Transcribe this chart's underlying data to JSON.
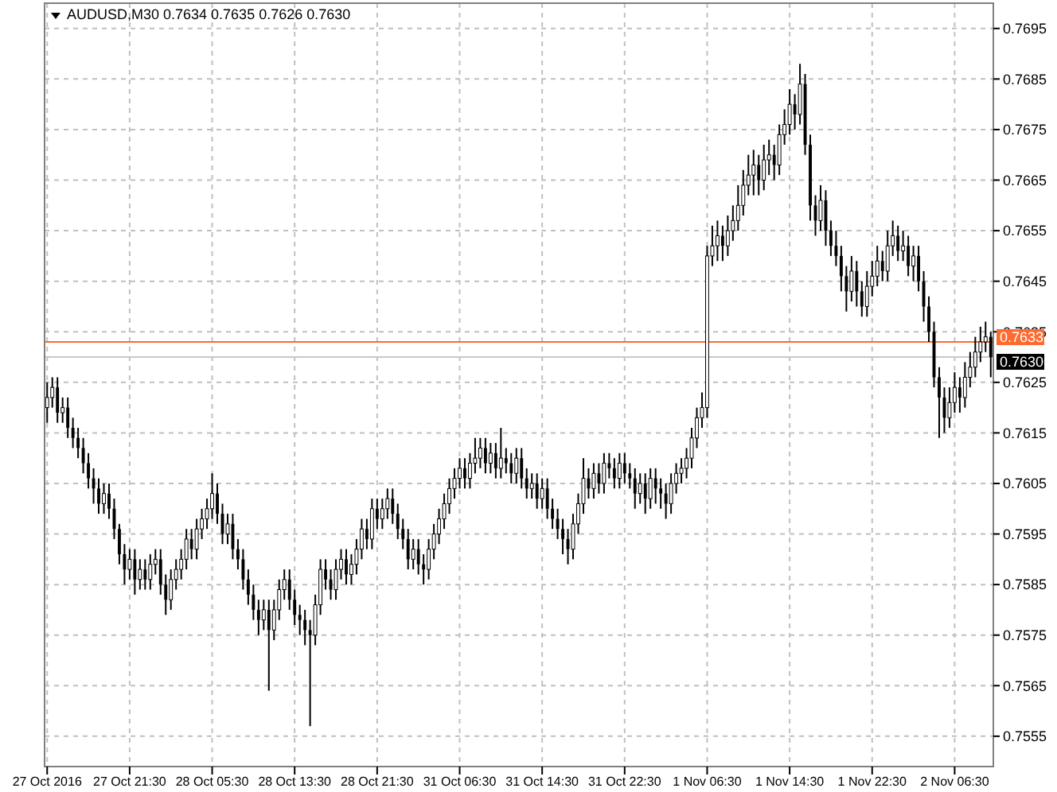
{
  "chart_data": {
    "type": "candlestick",
    "title": "AUDUSD,M30  0.7634 0.7635 0.7626 0.7630",
    "categories": [
      "27 Oct 2016",
      null,
      null,
      null,
      null,
      null,
      null,
      null,
      null,
      null,
      null,
      null,
      null,
      null,
      null,
      null,
      "27 Oct 21:30",
      null,
      null,
      null,
      null,
      null,
      null,
      null,
      null,
      null,
      null,
      null,
      null,
      null,
      null,
      null,
      "28 Oct 05:30",
      null,
      null,
      null,
      null,
      null,
      null,
      null,
      null,
      null,
      null,
      null,
      null,
      null,
      null,
      null,
      "28 Oct 13:30",
      null,
      null,
      null,
      null,
      null,
      null,
      null,
      null,
      null,
      null,
      null,
      null,
      null,
      null,
      null,
      "28 Oct 21:30",
      null,
      null,
      null,
      null,
      null,
      null,
      null,
      null,
      null,
      null,
      null,
      null,
      null,
      null,
      null,
      "31 Oct 06:30",
      null,
      null,
      null,
      null,
      null,
      null,
      null,
      null,
      null,
      null,
      null,
      null,
      null,
      null,
      null,
      "31 Oct 14:30",
      null,
      null,
      null,
      null,
      null,
      null,
      null,
      null,
      null,
      null,
      null,
      null,
      null,
      null,
      null,
      "31 Oct 22:30",
      null,
      null,
      null,
      null,
      null,
      null,
      null,
      null,
      null,
      null,
      null,
      null,
      null,
      null,
      null,
      "1 Nov 06:30",
      null,
      null,
      null,
      null,
      null,
      null,
      null,
      null,
      null,
      null,
      null,
      null,
      null,
      null,
      null,
      "1 Nov 14:30",
      null,
      null,
      null,
      null,
      null,
      null,
      null,
      null,
      null,
      null,
      null,
      null,
      null,
      null,
      null,
      "1 Nov 22:30",
      null,
      null,
      null,
      null,
      null,
      null,
      null,
      null,
      null,
      null,
      null,
      null,
      null,
      null,
      null,
      "2 Nov 06:30",
      null,
      null,
      null,
      null,
      null,
      null,
      null
    ],
    "ohlc": [
      [
        0.762,
        0.7625,
        0.7617,
        0.7622
      ],
      [
        0.7622,
        0.7626,
        0.762,
        0.7624
      ],
      [
        0.7624,
        0.7626,
        0.7617,
        0.7619
      ],
      [
        0.7619,
        0.7622,
        0.7617,
        0.762
      ],
      [
        0.762,
        0.7622,
        0.7614,
        0.7616
      ],
      [
        0.7616,
        0.7618,
        0.7612,
        0.7614
      ],
      [
        0.7614,
        0.7616,
        0.761,
        0.7612
      ],
      [
        0.7612,
        0.7614,
        0.7607,
        0.7609
      ],
      [
        0.7609,
        0.7611,
        0.7604,
        0.7606
      ],
      [
        0.7606,
        0.7608,
        0.7601,
        0.7604
      ],
      [
        0.7604,
        0.7606,
        0.7599,
        0.7601
      ],
      [
        0.7601,
        0.7605,
        0.7599,
        0.7603
      ],
      [
        0.7603,
        0.7605,
        0.7598,
        0.76
      ],
      [
        0.76,
        0.7602,
        0.7594,
        0.7596
      ],
      [
        0.7596,
        0.7597,
        0.7589,
        0.7591
      ],
      [
        0.7591,
        0.7593,
        0.7585,
        0.7588
      ],
      [
        0.7588,
        0.7592,
        0.7586,
        0.759
      ],
      [
        0.759,
        0.7592,
        0.7583,
        0.7586
      ],
      [
        0.7586,
        0.759,
        0.7584,
        0.7588
      ],
      [
        0.7588,
        0.759,
        0.7584,
        0.7586
      ],
      [
        0.7586,
        0.7591,
        0.7584,
        0.7589
      ],
      [
        0.7589,
        0.7592,
        0.7587,
        0.759
      ],
      [
        0.759,
        0.7592,
        0.7583,
        0.7585
      ],
      [
        0.7585,
        0.7587,
        0.7579,
        0.7582
      ],
      [
        0.7582,
        0.7588,
        0.758,
        0.7586
      ],
      [
        0.7586,
        0.759,
        0.7584,
        0.7588
      ],
      [
        0.7588,
        0.7592,
        0.7586,
        0.759
      ],
      [
        0.759,
        0.7596,
        0.7588,
        0.7594
      ],
      [
        0.7594,
        0.7596,
        0.759,
        0.7592
      ],
      [
        0.7592,
        0.7598,
        0.759,
        0.7596
      ],
      [
        0.7596,
        0.76,
        0.7594,
        0.7598
      ],
      [
        0.7598,
        0.7602,
        0.7596,
        0.76
      ],
      [
        0.76,
        0.7607,
        0.7598,
        0.7603
      ],
      [
        0.7603,
        0.7605,
        0.7597,
        0.7599
      ],
      [
        0.7599,
        0.7601,
        0.7593,
        0.7595
      ],
      [
        0.7595,
        0.7599,
        0.7593,
        0.7597
      ],
      [
        0.7597,
        0.7599,
        0.759,
        0.7592
      ],
      [
        0.7592,
        0.7594,
        0.7588,
        0.759
      ],
      [
        0.759,
        0.7592,
        0.7584,
        0.7586
      ],
      [
        0.7586,
        0.7588,
        0.7581,
        0.7583
      ],
      [
        0.7583,
        0.7585,
        0.7578,
        0.758
      ],
      [
        0.758,
        0.7582,
        0.7575,
        0.7578
      ],
      [
        0.7578,
        0.7582,
        0.7576,
        0.758
      ],
      [
        0.758,
        0.7582,
        0.7564,
        0.7576
      ],
      [
        0.7576,
        0.7582,
        0.7574,
        0.758
      ],
      [
        0.758,
        0.7586,
        0.7578,
        0.7584
      ],
      [
        0.7584,
        0.7588,
        0.7582,
        0.7586
      ],
      [
        0.7586,
        0.7588,
        0.758,
        0.7582
      ],
      [
        0.7582,
        0.7584,
        0.7577,
        0.7579
      ],
      [
        0.7579,
        0.7581,
        0.7575,
        0.7578
      ],
      [
        0.7578,
        0.758,
        0.7573,
        0.7576
      ],
      [
        0.7576,
        0.7578,
        0.7557,
        0.7575
      ],
      [
        0.7575,
        0.7583,
        0.7573,
        0.7581
      ],
      [
        0.7581,
        0.759,
        0.7579,
        0.7588
      ],
      [
        0.7588,
        0.759,
        0.7584,
        0.7586
      ],
      [
        0.7586,
        0.7588,
        0.7582,
        0.7584
      ],
      [
        0.7584,
        0.759,
        0.7582,
        0.7588
      ],
      [
        0.7588,
        0.7592,
        0.7586,
        0.759
      ],
      [
        0.759,
        0.7592,
        0.7585,
        0.7587
      ],
      [
        0.7587,
        0.7591,
        0.7585,
        0.7589
      ],
      [
        0.7589,
        0.7594,
        0.7587,
        0.7592
      ],
      [
        0.7592,
        0.7598,
        0.759,
        0.7596
      ],
      [
        0.7596,
        0.7598,
        0.7592,
        0.7594
      ],
      [
        0.7594,
        0.7602,
        0.7592,
        0.76
      ],
      [
        0.76,
        0.7602,
        0.7596,
        0.7598
      ],
      [
        0.7598,
        0.7602,
        0.7596,
        0.76
      ],
      [
        0.76,
        0.7604,
        0.7598,
        0.7602
      ],
      [
        0.7602,
        0.7604,
        0.7597,
        0.7599
      ],
      [
        0.7599,
        0.7601,
        0.7594,
        0.7596
      ],
      [
        0.7596,
        0.7598,
        0.7592,
        0.7594
      ],
      [
        0.7594,
        0.7596,
        0.7588,
        0.759
      ],
      [
        0.759,
        0.7594,
        0.7588,
        0.7592
      ],
      [
        0.7592,
        0.7594,
        0.7587,
        0.7589
      ],
      [
        0.7589,
        0.7591,
        0.7585,
        0.7588
      ],
      [
        0.7588,
        0.7594,
        0.7586,
        0.7592
      ],
      [
        0.7592,
        0.7597,
        0.759,
        0.7595
      ],
      [
        0.7595,
        0.76,
        0.7593,
        0.7598
      ],
      [
        0.7598,
        0.7603,
        0.7596,
        0.7601
      ],
      [
        0.7601,
        0.7606,
        0.7599,
        0.7604
      ],
      [
        0.7604,
        0.7608,
        0.7602,
        0.7606
      ],
      [
        0.7606,
        0.761,
        0.7604,
        0.7608
      ],
      [
        0.7608,
        0.761,
        0.7604,
        0.7606
      ],
      [
        0.7606,
        0.7611,
        0.7604,
        0.7609
      ],
      [
        0.7609,
        0.7614,
        0.7607,
        0.761
      ],
      [
        0.761,
        0.7614,
        0.7608,
        0.7612
      ],
      [
        0.7612,
        0.7614,
        0.7607,
        0.7609
      ],
      [
        0.7609,
        0.7613,
        0.7607,
        0.7611
      ],
      [
        0.7611,
        0.7613,
        0.7606,
        0.7608
      ],
      [
        0.7608,
        0.7616,
        0.7606,
        0.761
      ],
      [
        0.761,
        0.7612,
        0.7607,
        0.7609
      ],
      [
        0.7609,
        0.7611,
        0.7605,
        0.7607
      ],
      [
        0.7607,
        0.7612,
        0.7605,
        0.761
      ],
      [
        0.761,
        0.7612,
        0.7604,
        0.7606
      ],
      [
        0.7606,
        0.7608,
        0.7602,
        0.7604
      ],
      [
        0.7604,
        0.7607,
        0.7602,
        0.7605
      ],
      [
        0.7605,
        0.7607,
        0.76,
        0.7602
      ],
      [
        0.7602,
        0.7606,
        0.76,
        0.7604
      ],
      [
        0.7604,
        0.7606,
        0.7598,
        0.76
      ],
      [
        0.76,
        0.7602,
        0.7596,
        0.7598
      ],
      [
        0.7598,
        0.76,
        0.7594,
        0.7596
      ],
      [
        0.7596,
        0.7598,
        0.7591,
        0.7594
      ],
      [
        0.7594,
        0.7596,
        0.7589,
        0.7592
      ],
      [
        0.7592,
        0.7599,
        0.759,
        0.7597
      ],
      [
        0.7597,
        0.7603,
        0.7595,
        0.7601
      ],
      [
        0.7601,
        0.761,
        0.7599,
        0.7606
      ],
      [
        0.7606,
        0.7608,
        0.7602,
        0.7604
      ],
      [
        0.7604,
        0.7609,
        0.7602,
        0.7607
      ],
      [
        0.7607,
        0.7609,
        0.7603,
        0.7605
      ],
      [
        0.7605,
        0.7611,
        0.7603,
        0.7609
      ],
      [
        0.7609,
        0.7611,
        0.7606,
        0.7608
      ],
      [
        0.7608,
        0.761,
        0.7604,
        0.7606
      ],
      [
        0.7606,
        0.7611,
        0.7604,
        0.7609
      ],
      [
        0.7609,
        0.7611,
        0.7605,
        0.7607
      ],
      [
        0.7607,
        0.7609,
        0.7604,
        0.7606
      ],
      [
        0.7606,
        0.7608,
        0.76,
        0.7603
      ],
      [
        0.7603,
        0.7607,
        0.7601,
        0.7605
      ],
      [
        0.7605,
        0.7607,
        0.7599,
        0.7602
      ],
      [
        0.7602,
        0.7608,
        0.76,
        0.7606
      ],
      [
        0.7606,
        0.7608,
        0.7601,
        0.7604
      ],
      [
        0.7604,
        0.7606,
        0.76,
        0.7603
      ],
      [
        0.7603,
        0.7605,
        0.7598,
        0.7601
      ],
      [
        0.7601,
        0.7607,
        0.7599,
        0.7605
      ],
      [
        0.7605,
        0.7609,
        0.7603,
        0.7607
      ],
      [
        0.7607,
        0.761,
        0.7605,
        0.7608
      ],
      [
        0.7608,
        0.7612,
        0.7606,
        0.761
      ],
      [
        0.761,
        0.7616,
        0.7608,
        0.7614
      ],
      [
        0.7614,
        0.762,
        0.7612,
        0.7618
      ],
      [
        0.7618,
        0.7623,
        0.7616,
        0.762
      ],
      [
        0.762,
        0.7652,
        0.7618,
        0.765
      ],
      [
        0.765,
        0.7656,
        0.7648,
        0.7652
      ],
      [
        0.7652,
        0.7657,
        0.7649,
        0.7654
      ],
      [
        0.7654,
        0.7656,
        0.7649,
        0.7652
      ],
      [
        0.7652,
        0.7658,
        0.765,
        0.7655
      ],
      [
        0.7655,
        0.766,
        0.7653,
        0.7657
      ],
      [
        0.7657,
        0.7664,
        0.7655,
        0.766
      ],
      [
        0.766,
        0.7667,
        0.7658,
        0.7664
      ],
      [
        0.7664,
        0.767,
        0.7662,
        0.7666
      ],
      [
        0.7666,
        0.7671,
        0.7662,
        0.7668
      ],
      [
        0.7668,
        0.767,
        0.7662,
        0.7665
      ],
      [
        0.7665,
        0.7672,
        0.7663,
        0.7669
      ],
      [
        0.7669,
        0.7673,
        0.7666,
        0.767
      ],
      [
        0.767,
        0.7672,
        0.7665,
        0.7668
      ],
      [
        0.7668,
        0.7676,
        0.7666,
        0.7674
      ],
      [
        0.7674,
        0.7679,
        0.7672,
        0.7676
      ],
      [
        0.7676,
        0.7683,
        0.7674,
        0.768
      ],
      [
        0.768,
        0.7682,
        0.7675,
        0.7678
      ],
      [
        0.7678,
        0.7688,
        0.7676,
        0.7684
      ],
      [
        0.7684,
        0.7686,
        0.767,
        0.7672
      ],
      [
        0.7672,
        0.7674,
        0.7657,
        0.766
      ],
      [
        0.766,
        0.7662,
        0.7654,
        0.7657
      ],
      [
        0.7657,
        0.7664,
        0.7655,
        0.7661
      ],
      [
        0.7661,
        0.7663,
        0.7652,
        0.7655
      ],
      [
        0.7655,
        0.7657,
        0.765,
        0.7652
      ],
      [
        0.7652,
        0.7655,
        0.7648,
        0.765
      ],
      [
        0.765,
        0.7652,
        0.7643,
        0.7646
      ],
      [
        0.7646,
        0.7648,
        0.7639,
        0.7643
      ],
      [
        0.7643,
        0.765,
        0.7641,
        0.7647
      ],
      [
        0.7647,
        0.7649,
        0.764,
        0.7643
      ],
      [
        0.7643,
        0.7645,
        0.7638,
        0.764
      ],
      [
        0.764,
        0.7647,
        0.7638,
        0.7644
      ],
      [
        0.7644,
        0.7649,
        0.7642,
        0.7646
      ],
      [
        0.7646,
        0.7652,
        0.7644,
        0.7649
      ],
      [
        0.7649,
        0.7651,
        0.7645,
        0.7647
      ],
      [
        0.7647,
        0.7655,
        0.7645,
        0.7652
      ],
      [
        0.7652,
        0.7657,
        0.765,
        0.7654
      ],
      [
        0.7654,
        0.7656,
        0.7649,
        0.7651
      ],
      [
        0.7651,
        0.7655,
        0.7649,
        0.7652
      ],
      [
        0.7652,
        0.7654,
        0.7646,
        0.7648
      ],
      [
        0.7648,
        0.7652,
        0.7645,
        0.765
      ],
      [
        0.765,
        0.7652,
        0.7643,
        0.7645
      ],
      [
        0.7645,
        0.7647,
        0.7637,
        0.764
      ],
      [
        0.764,
        0.7642,
        0.7633,
        0.7635
      ],
      [
        0.7635,
        0.7637,
        0.7624,
        0.7626
      ],
      [
        0.7626,
        0.7628,
        0.7614,
        0.7622
      ],
      [
        0.7622,
        0.7624,
        0.7615,
        0.7618
      ],
      [
        0.7618,
        0.7624,
        0.7616,
        0.7621
      ],
      [
        0.7621,
        0.7627,
        0.7619,
        0.7624
      ],
      [
        0.7624,
        0.7626,
        0.7619,
        0.7622
      ],
      [
        0.7622,
        0.7629,
        0.762,
        0.7626
      ],
      [
        0.7626,
        0.7631,
        0.7624,
        0.7628
      ],
      [
        0.7628,
        0.7634,
        0.7626,
        0.7631
      ],
      [
        0.7631,
        0.7636,
        0.7629,
        0.7633
      ],
      [
        0.7633,
        0.7637,
        0.7631,
        0.7634
      ],
      [
        0.7634,
        0.7635,
        0.7626,
        0.763
      ]
    ],
    "ylim": [
      0.7549,
      0.77
    ],
    "yticks": [
      0.7555,
      0.7565,
      0.7575,
      0.7585,
      0.7595,
      0.7605,
      0.7615,
      0.7625,
      0.7635,
      0.7645,
      0.7655,
      0.7665,
      0.7675,
      0.7685,
      0.7695
    ],
    "grid": true,
    "ref_lines": [
      {
        "axis": "y",
        "value": 0.7633,
        "label": "0.7633",
        "color": "#ff6a2e"
      },
      {
        "axis": "y",
        "value": 0.763,
        "label": "0.7630",
        "color": "#c8c8c8"
      }
    ]
  }
}
